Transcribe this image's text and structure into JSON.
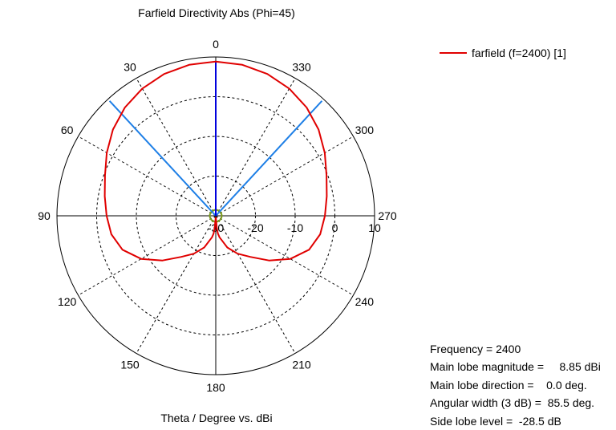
{
  "chart_data": {
    "type": "polar-line",
    "title": "Farfield Directivity Abs (Phi=45)",
    "xlabel": "Theta / Degree vs. dBi",
    "angle_ticks": [
      "0",
      "30",
      "60",
      "90",
      "120",
      "150",
      "180",
      "210",
      "240",
      "270",
      "300",
      "330"
    ],
    "radial_ticks": [
      "-30",
      "-20",
      "-10",
      "0",
      "10"
    ],
    "radial_range": [
      -30,
      10
    ],
    "grid": true,
    "legend_position": "top-right",
    "series": [
      {
        "name": "farfield (f=2400) [1]",
        "color": "#e00000",
        "points": [
          [
            0,
            8.85
          ],
          [
            10,
            8.6
          ],
          [
            20,
            8.0
          ],
          [
            30,
            7.0
          ],
          [
            40,
            5.6
          ],
          [
            50,
            3.8
          ],
          [
            60,
            1.7
          ],
          [
            70,
            -0.3
          ],
          [
            80,
            -1.6
          ],
          [
            90,
            -2.5
          ],
          [
            100,
            -3.3
          ],
          [
            110,
            -5.0
          ],
          [
            120,
            -8.3
          ],
          [
            130,
            -12.5
          ],
          [
            140,
            -16.5
          ],
          [
            150,
            -19.0
          ],
          [
            160,
            -21.5
          ],
          [
            166,
            -23.6
          ],
          [
            170,
            -24.5
          ],
          [
            173,
            -25.5
          ],
          [
            175,
            -26.8
          ],
          [
            177,
            -29.5
          ],
          [
            180,
            -28.5
          ],
          [
            183,
            -29.5
          ],
          [
            185,
            -26.8
          ],
          [
            187,
            -25.5
          ],
          [
            190,
            -24.5
          ],
          [
            194,
            -23.6
          ],
          [
            200,
            -21.5
          ],
          [
            210,
            -19.0
          ],
          [
            220,
            -16.5
          ],
          [
            230,
            -12.5
          ],
          [
            240,
            -8.3
          ],
          [
            250,
            -5.0
          ],
          [
            260,
            -3.3
          ],
          [
            270,
            -2.5
          ],
          [
            280,
            -1.6
          ],
          [
            290,
            -0.3
          ],
          [
            300,
            1.7
          ],
          [
            310,
            3.8
          ],
          [
            320,
            5.6
          ],
          [
            330,
            7.0
          ],
          [
            340,
            8.0
          ],
          [
            350,
            8.6
          ],
          [
            360,
            8.85
          ]
        ]
      }
    ],
    "markers": {
      "main_lobe_direction": 0,
      "beamwidth_edges": [
        -42.75,
        42.75
      ],
      "side_lobe_circle_level": -28.5,
      "main_lobe_color": "#0000dd",
      "beamwidth_color": "#1e7fe6",
      "side_lobe_color": "#7a9a1a"
    },
    "info": [
      {
        "label": "Frequency = 2400",
        "value": ""
      },
      {
        "label": "Main lobe magnitude =",
        "value": "8.85 dBi"
      },
      {
        "label": "Main lobe direction =",
        "value": "0.0 deg."
      },
      {
        "label": "Angular width (3 dB) =",
        "value": "85.5 deg."
      },
      {
        "label": "Side lobe level =",
        "value": "-28.5 dB"
      }
    ]
  }
}
